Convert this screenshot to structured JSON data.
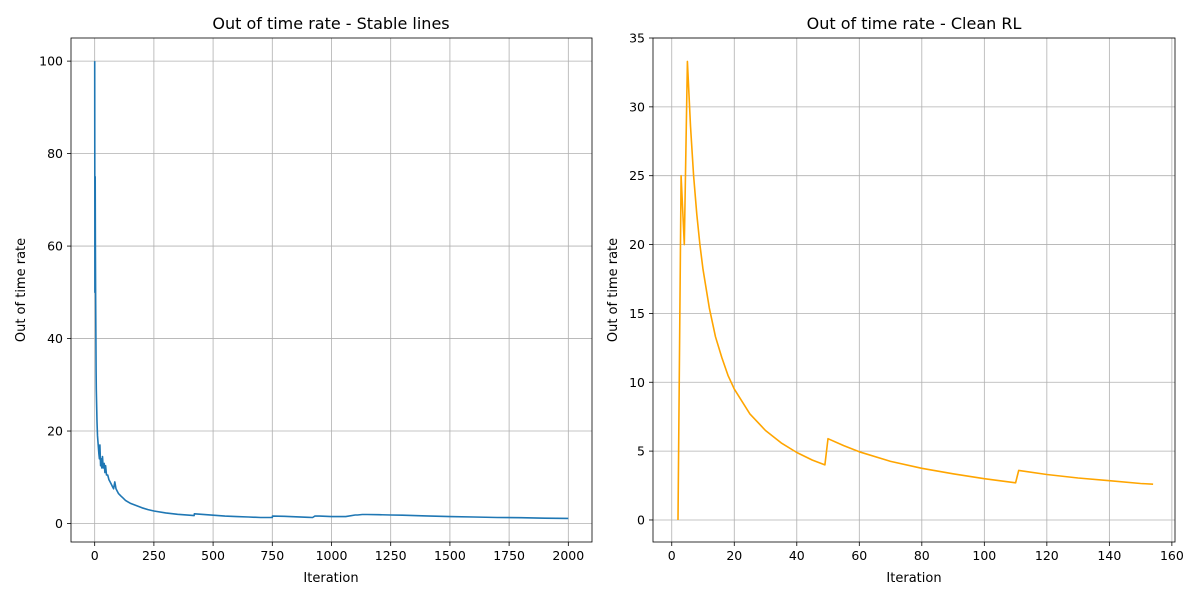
{
  "chart_data": [
    {
      "type": "line",
      "title": "Out of time rate - Stable lines",
      "xlabel": "Iteration",
      "ylabel": "Out of time rate",
      "xlim": [
        -100,
        2100
      ],
      "ylim": [
        -4,
        105
      ],
      "xticks": [
        "0",
        "250",
        "500",
        "750",
        "1000",
        "1250",
        "1500",
        "1750",
        "2000"
      ],
      "yticks": [
        "0",
        "20",
        "40",
        "60",
        "80",
        "100"
      ],
      "grid": true,
      "color": "#1f77b4",
      "series": [
        {
          "x": [
            0,
            1,
            2,
            3,
            4,
            5,
            6,
            7,
            8,
            10,
            12,
            15,
            18,
            20,
            22,
            25,
            28,
            30,
            33,
            36,
            40,
            43,
            46,
            50,
            55,
            60,
            65,
            70,
            75,
            80,
            85,
            90,
            95,
            100,
            110,
            120,
            130,
            140,
            150,
            175,
            200,
            225,
            250,
            300,
            350,
            400,
            420,
            421,
            450,
            500,
            550,
            600,
            650,
            700,
            730,
            750,
            751,
            800,
            850,
            900,
            920,
            930,
            950,
            1000,
            1050,
            1060,
            1100,
            1110,
            1130,
            1150,
            1200,
            1250,
            1300,
            1400,
            1500,
            1600,
            1700,
            1800,
            1900,
            2000
          ],
          "y": [
            100,
            50,
            75,
            60,
            50,
            40,
            33,
            29,
            26,
            22,
            19,
            17,
            15,
            14,
            17,
            12.5,
            14,
            12,
            14.5,
            12,
            13,
            11,
            12.5,
            10.5,
            10.5,
            9.5,
            9,
            8.5,
            8,
            7.5,
            9,
            7.5,
            7,
            6.5,
            6,
            5.5,
            5,
            4.7,
            4.4,
            3.9,
            3.4,
            3.0,
            2.7,
            2.3,
            2.0,
            1.8,
            1.7,
            2.1,
            2.0,
            1.8,
            1.6,
            1.5,
            1.4,
            1.3,
            1.3,
            1.3,
            1.6,
            1.55,
            1.45,
            1.35,
            1.3,
            1.6,
            1.6,
            1.5,
            1.5,
            1.5,
            1.85,
            1.85,
            1.95,
            1.95,
            1.9,
            1.85,
            1.8,
            1.65,
            1.5,
            1.4,
            1.3,
            1.25,
            1.15,
            1.1
          ]
        }
      ]
    },
    {
      "type": "line",
      "title": "Out of time rate - Clean RL",
      "xlabel": "Iteration",
      "ylabel": "Out of time rate",
      "xlim": [
        -6,
        161
      ],
      "ylim": [
        -1.6,
        35
      ],
      "xticks": [
        "0",
        "20",
        "40",
        "60",
        "80",
        "100",
        "120",
        "140",
        "160"
      ],
      "yticks": [
        "0",
        "5",
        "10",
        "15",
        "20",
        "25",
        "30",
        "35"
      ],
      "grid": true,
      "color": "#ffa500",
      "series": [
        {
          "x": [
            2,
            3,
            4,
            5,
            6,
            7,
            8,
            9,
            10,
            12,
            14,
            16,
            18,
            20,
            25,
            30,
            35,
            40,
            45,
            49,
            50,
            55,
            60,
            70,
            80,
            90,
            100,
            110,
            111,
            120,
            130,
            140,
            150,
            154
          ],
          "y": [
            0,
            25,
            20,
            33.3,
            28.6,
            25,
            22.2,
            20,
            18.2,
            15.4,
            13.3,
            11.8,
            10.5,
            9.5,
            7.7,
            6.5,
            5.6,
            4.9,
            4.35,
            4.0,
            5.9,
            5.4,
            4.95,
            4.25,
            3.75,
            3.35,
            3.0,
            2.7,
            3.6,
            3.3,
            3.05,
            2.85,
            2.65,
            2.6
          ]
        }
      ]
    }
  ]
}
